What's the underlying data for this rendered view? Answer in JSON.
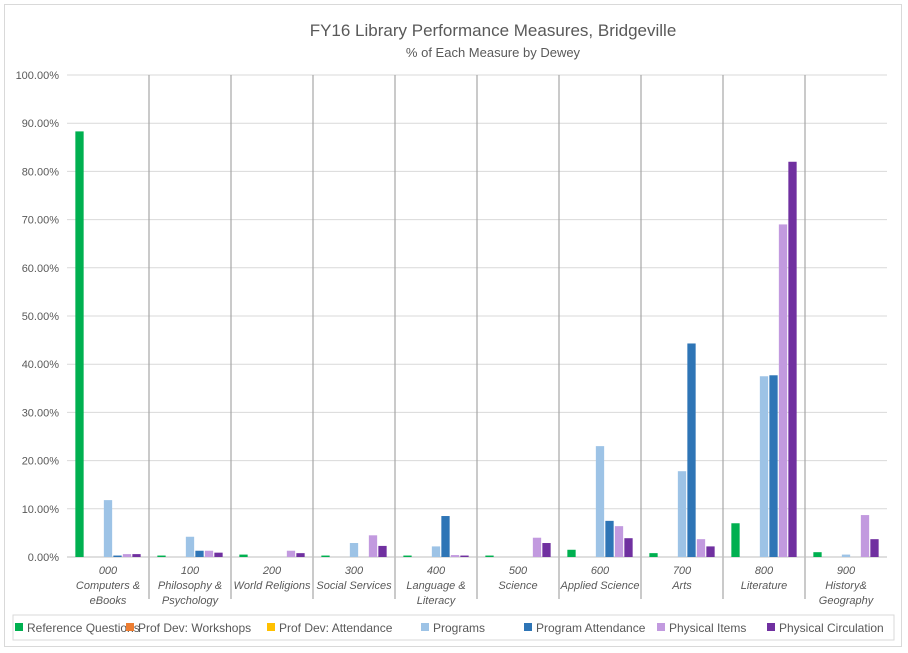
{
  "chart_data": {
    "type": "bar",
    "title": "FY16 Library Performance Measures, Bridgeville",
    "subtitle": "% of Each Measure by Dewey",
    "xlabel": "",
    "ylabel": "",
    "ylim": [
      0,
      100
    ],
    "ytick_labels": [
      "0.00%",
      "10.00%",
      "20.00%",
      "30.00%",
      "40.00%",
      "50.00%",
      "60.00%",
      "70.00%",
      "80.00%",
      "90.00%",
      "100.00%"
    ],
    "categories": [
      [
        "000",
        "Computers &",
        "eBooks"
      ],
      [
        "100",
        "Philosophy &",
        "Psychology"
      ],
      [
        "200",
        "World Religions"
      ],
      [
        "300",
        "Social Services"
      ],
      [
        "400",
        "Language &",
        "Literacy"
      ],
      [
        "500",
        "Science"
      ],
      [
        "600",
        "Applied Science"
      ],
      [
        "700",
        "Arts"
      ],
      [
        "800",
        "Literature"
      ],
      [
        "900",
        "History&",
        "Geography"
      ]
    ],
    "grid": true,
    "legend_position": "bottom",
    "series": [
      {
        "name": "Reference Questions",
        "color": "#00b050",
        "values": [
          88.3,
          0.3,
          0.5,
          0.3,
          0.3,
          0.3,
          1.5,
          0.8,
          7.0,
          1.0
        ]
      },
      {
        "name": "Prof Dev: Workshops",
        "color": "#ed7d31",
        "values": [
          0,
          0,
          0,
          0,
          0,
          0,
          0,
          0,
          0,
          0
        ]
      },
      {
        "name": "Prof Dev: Attendance",
        "color": "#ffc000",
        "values": [
          0,
          0,
          0,
          0,
          0,
          0,
          0,
          0,
          0,
          0
        ]
      },
      {
        "name": "Programs",
        "color": "#9dc3e6",
        "values": [
          11.8,
          4.2,
          0,
          2.9,
          2.2,
          0,
          23.0,
          17.8,
          37.5,
          0.5
        ]
      },
      {
        "name": "Program Attendance",
        "color": "#2e75b6",
        "values": [
          0.3,
          1.3,
          0,
          0,
          8.5,
          0,
          7.5,
          44.3,
          37.7,
          0
        ]
      },
      {
        "name": "Physical Items",
        "color": "#c29adf",
        "values": [
          0.6,
          1.3,
          1.3,
          4.5,
          0.4,
          4.0,
          6.4,
          3.7,
          69.0,
          8.7
        ]
      },
      {
        "name": "Physical Circulation",
        "color": "#7030a0",
        "values": [
          0.6,
          0.9,
          0.8,
          2.3,
          0.3,
          2.9,
          3.9,
          2.2,
          82.0,
          3.7
        ]
      }
    ]
  }
}
